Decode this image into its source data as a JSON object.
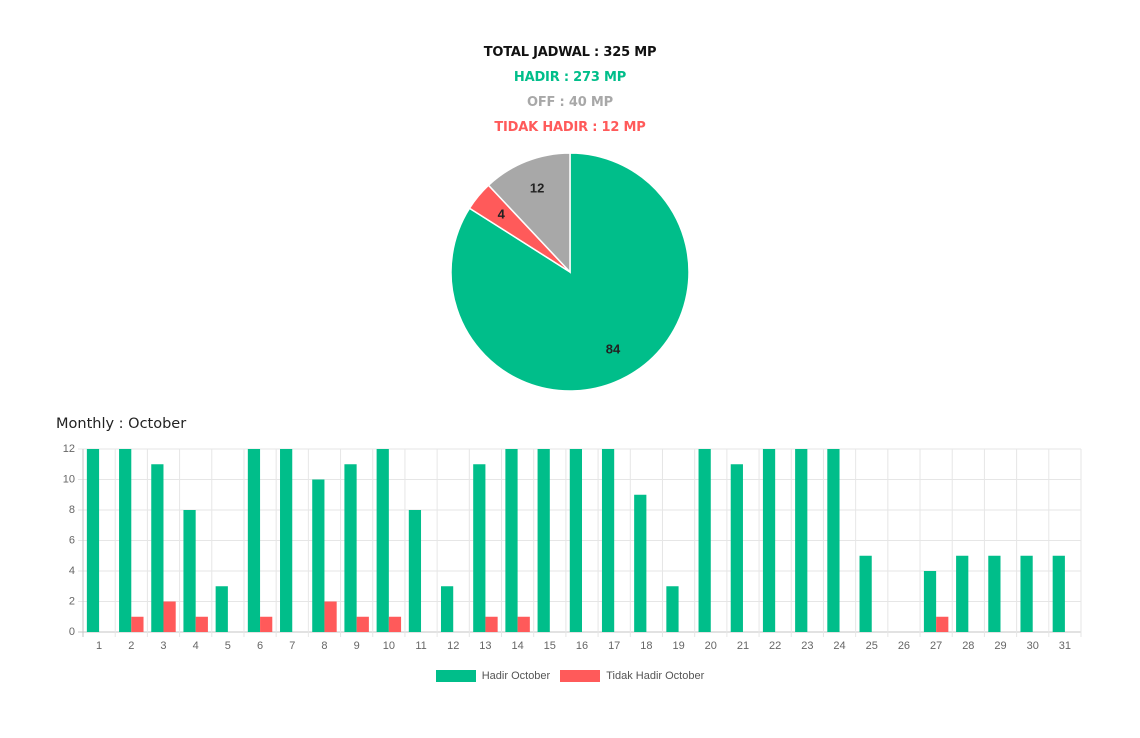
{
  "summary": {
    "total": "TOTAL JADWAL : 325 MP",
    "hadir": "HADIR : 273 MP",
    "off": "OFF : 40 MP",
    "tidak_hadir": "TIDAK HADIR : 12 MP"
  },
  "monthly_title": "Monthly : October",
  "colors": {
    "hadir": "#00be8a",
    "tidak_hadir": "#ff5a5a",
    "off": "#a8a8a8"
  },
  "chart_data": [
    {
      "type": "pie",
      "slices": [
        {
          "label": "84",
          "value": 84,
          "color": "#00be8a"
        },
        {
          "label": "4",
          "value": 4,
          "color": "#ff5a5a"
        },
        {
          "label": "12",
          "value": 12,
          "color": "#a8a8a8"
        }
      ]
    },
    {
      "type": "bar",
      "categories": [
        "1",
        "2",
        "3",
        "4",
        "5",
        "6",
        "7",
        "8",
        "9",
        "10",
        "11",
        "12",
        "13",
        "14",
        "15",
        "16",
        "17",
        "18",
        "19",
        "20",
        "21",
        "22",
        "23",
        "24",
        "25",
        "26",
        "27",
        "28",
        "29",
        "30",
        "31"
      ],
      "series": [
        {
          "name": "Hadir October",
          "color": "#00be8a",
          "values": [
            12,
            12,
            11,
            8,
            3,
            12,
            12,
            10,
            11,
            12,
            8,
            3,
            11,
            12,
            12,
            12,
            12,
            9,
            3,
            12,
            11,
            12,
            12,
            12,
            5,
            0,
            4,
            5,
            5,
            5,
            5
          ]
        },
        {
          "name": "Tidak Hadir October",
          "color": "#ff5a5a",
          "values": [
            0,
            1,
            2,
            1,
            0,
            1,
            0,
            2,
            1,
            1,
            0,
            0,
            1,
            1,
            0,
            0,
            0,
            0,
            0,
            0,
            0,
            0,
            0,
            0,
            0,
            0,
            1,
            0,
            0,
            0,
            0
          ]
        }
      ],
      "ylim": [
        0,
        12
      ],
      "yticks": [
        0,
        2,
        4,
        6,
        8,
        10,
        12
      ],
      "grid": true,
      "legend": "bottom"
    }
  ]
}
